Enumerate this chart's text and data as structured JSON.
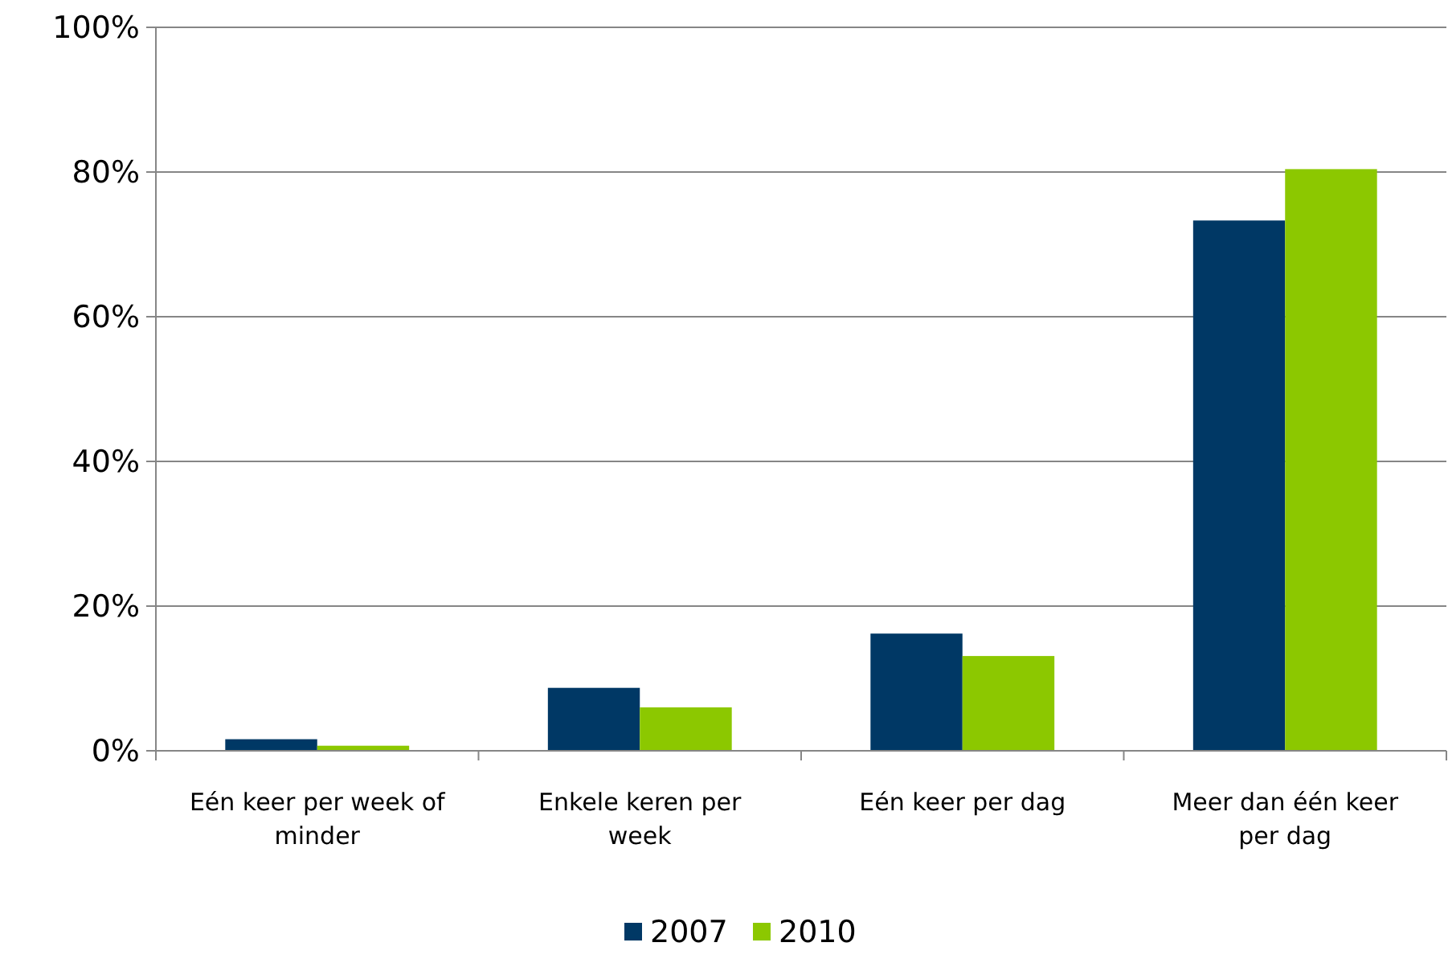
{
  "chart_data": {
    "type": "bar",
    "categories": [
      "Eén keer per week of minder",
      "Enkele keren per week",
      "Eén keer per dag",
      "Meer dan één keer per dag"
    ],
    "series": [
      {
        "name": "2007",
        "color": "#003865",
        "values": [
          1.6,
          8.7,
          16.2,
          73.3
        ]
      },
      {
        "name": "2010",
        "color": "#8cc800",
        "values": [
          0.7,
          6.0,
          13.1,
          80.4
        ]
      }
    ],
    "ylim": [
      0,
      100
    ],
    "yticks": [
      {
        "value": 0,
        "label": "0%"
      },
      {
        "value": 20,
        "label": "20%"
      },
      {
        "value": 40,
        "label": "40%"
      },
      {
        "value": 60,
        "label": "60%"
      },
      {
        "value": 80,
        "label": "80%"
      },
      {
        "value": 100,
        "label": "100%"
      }
    ],
    "grid": "y",
    "legend": "bottom"
  }
}
